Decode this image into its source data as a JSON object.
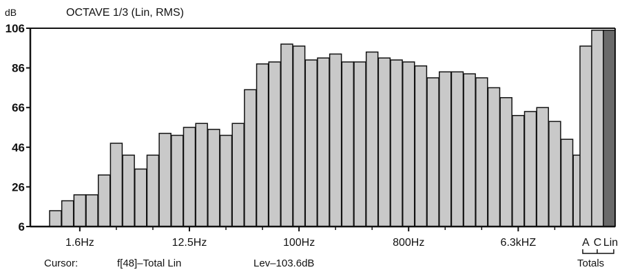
{
  "chart_data": {
    "type": "bar",
    "title": "OCTAVE 1/3  (Lin, RMS)",
    "ylabel": "dB",
    "ylim": [
      6,
      106
    ],
    "yticks": [
      "106",
      "86",
      "66",
      "46",
      "26",
      "6"
    ],
    "xtick_labels": [
      {
        "label": "1.6Hz",
        "index": 2
      },
      {
        "label": "12.5Hz",
        "index": 11
      },
      {
        "label": "100Hz",
        "index": 20
      },
      {
        "label": "800Hz",
        "index": 29
      },
      {
        "label": "6.3kHZ",
        "index": 38
      }
    ],
    "values": [
      14,
      19,
      22,
      22,
      32,
      48,
      42,
      35,
      42,
      53,
      52,
      56,
      58,
      55,
      52,
      58,
      75,
      88,
      89,
      98,
      97,
      90,
      91,
      93,
      89,
      89,
      94,
      91,
      90,
      89,
      87,
      81,
      84,
      84,
      83,
      81,
      76,
      71,
      62,
      64,
      66,
      59,
      50,
      42
    ],
    "totals": {
      "labels": [
        "A",
        "C",
        "Lin"
      ],
      "values": [
        97,
        105,
        105
      ],
      "group_label": "Totals",
      "highlight_color": "#6a6a6a"
    },
    "bar_color": "#c9c9c9",
    "grid": false
  },
  "cursor": {
    "label": "Cursor:",
    "band": "f[48]–Total  Lin",
    "level": "Lev–103.6dB"
  }
}
